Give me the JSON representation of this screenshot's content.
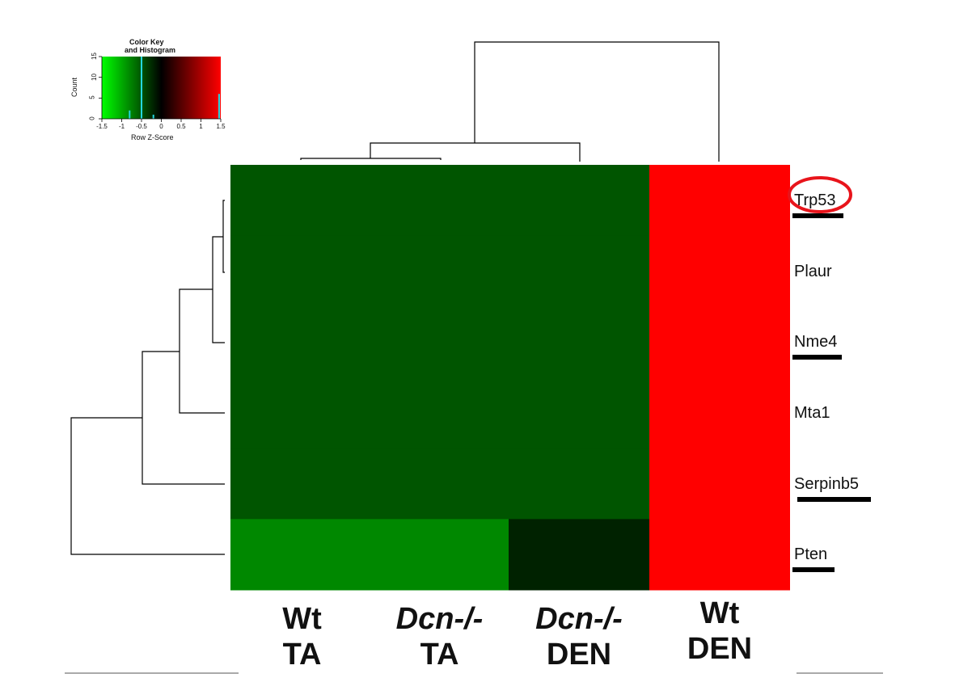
{
  "chart_data": {
    "type": "heatmap",
    "rows": [
      "Trp53",
      "Plaur",
      "Nme4",
      "Mta1",
      "Serpinb5",
      "Pten"
    ],
    "columns": [
      {
        "line1": "Wt",
        "line2": "TA",
        "italic": false
      },
      {
        "line1": "Dcn-/-",
        "line2": "TA",
        "italic": true
      },
      {
        "line1": "Dcn-/-",
        "line2": "DEN",
        "italic": true
      },
      {
        "line1": "Wt",
        "line2": "DEN",
        "italic": false
      }
    ],
    "values": [
      [
        -0.5,
        -0.5,
        -0.5,
        1.5
      ],
      [
        -0.5,
        -0.5,
        -0.5,
        1.5
      ],
      [
        -0.5,
        -0.5,
        -0.5,
        1.5
      ],
      [
        -0.5,
        -0.5,
        -0.5,
        1.5
      ],
      [
        -0.5,
        -0.5,
        -0.5,
        1.5
      ],
      [
        -0.8,
        -0.8,
        -0.2,
        1.5
      ]
    ],
    "highlighted_row": "Trp53",
    "underlined_rows": [
      "Trp53",
      "Nme4",
      "Serpinb5",
      "Pten"
    ],
    "color_scale": {
      "low": "#00ff00",
      "mid": "#000000",
      "high": "#ff0000",
      "range": [
        -1.5,
        1.5
      ]
    },
    "color_key": {
      "title_line1": "Color Key",
      "title_line2": "and Histogram",
      "xlabel": "Row Z-Score",
      "ylabel": "Count",
      "x_ticks": [
        "-1.5",
        "-1",
        "-0.5",
        "0",
        "0.5",
        "1",
        "1.5"
      ],
      "y_ticks": [
        "0",
        "5",
        "10",
        "15"
      ],
      "histogram": [
        {
          "x": -0.8,
          "count": 2
        },
        {
          "x": -0.5,
          "count": 15
        },
        {
          "x": -0.2,
          "count": 1
        },
        {
          "x": 1.5,
          "count": 6
        }
      ]
    }
  },
  "colors": {
    "highlight_circle": "#e8141b",
    "dendrogram": "#000000"
  }
}
